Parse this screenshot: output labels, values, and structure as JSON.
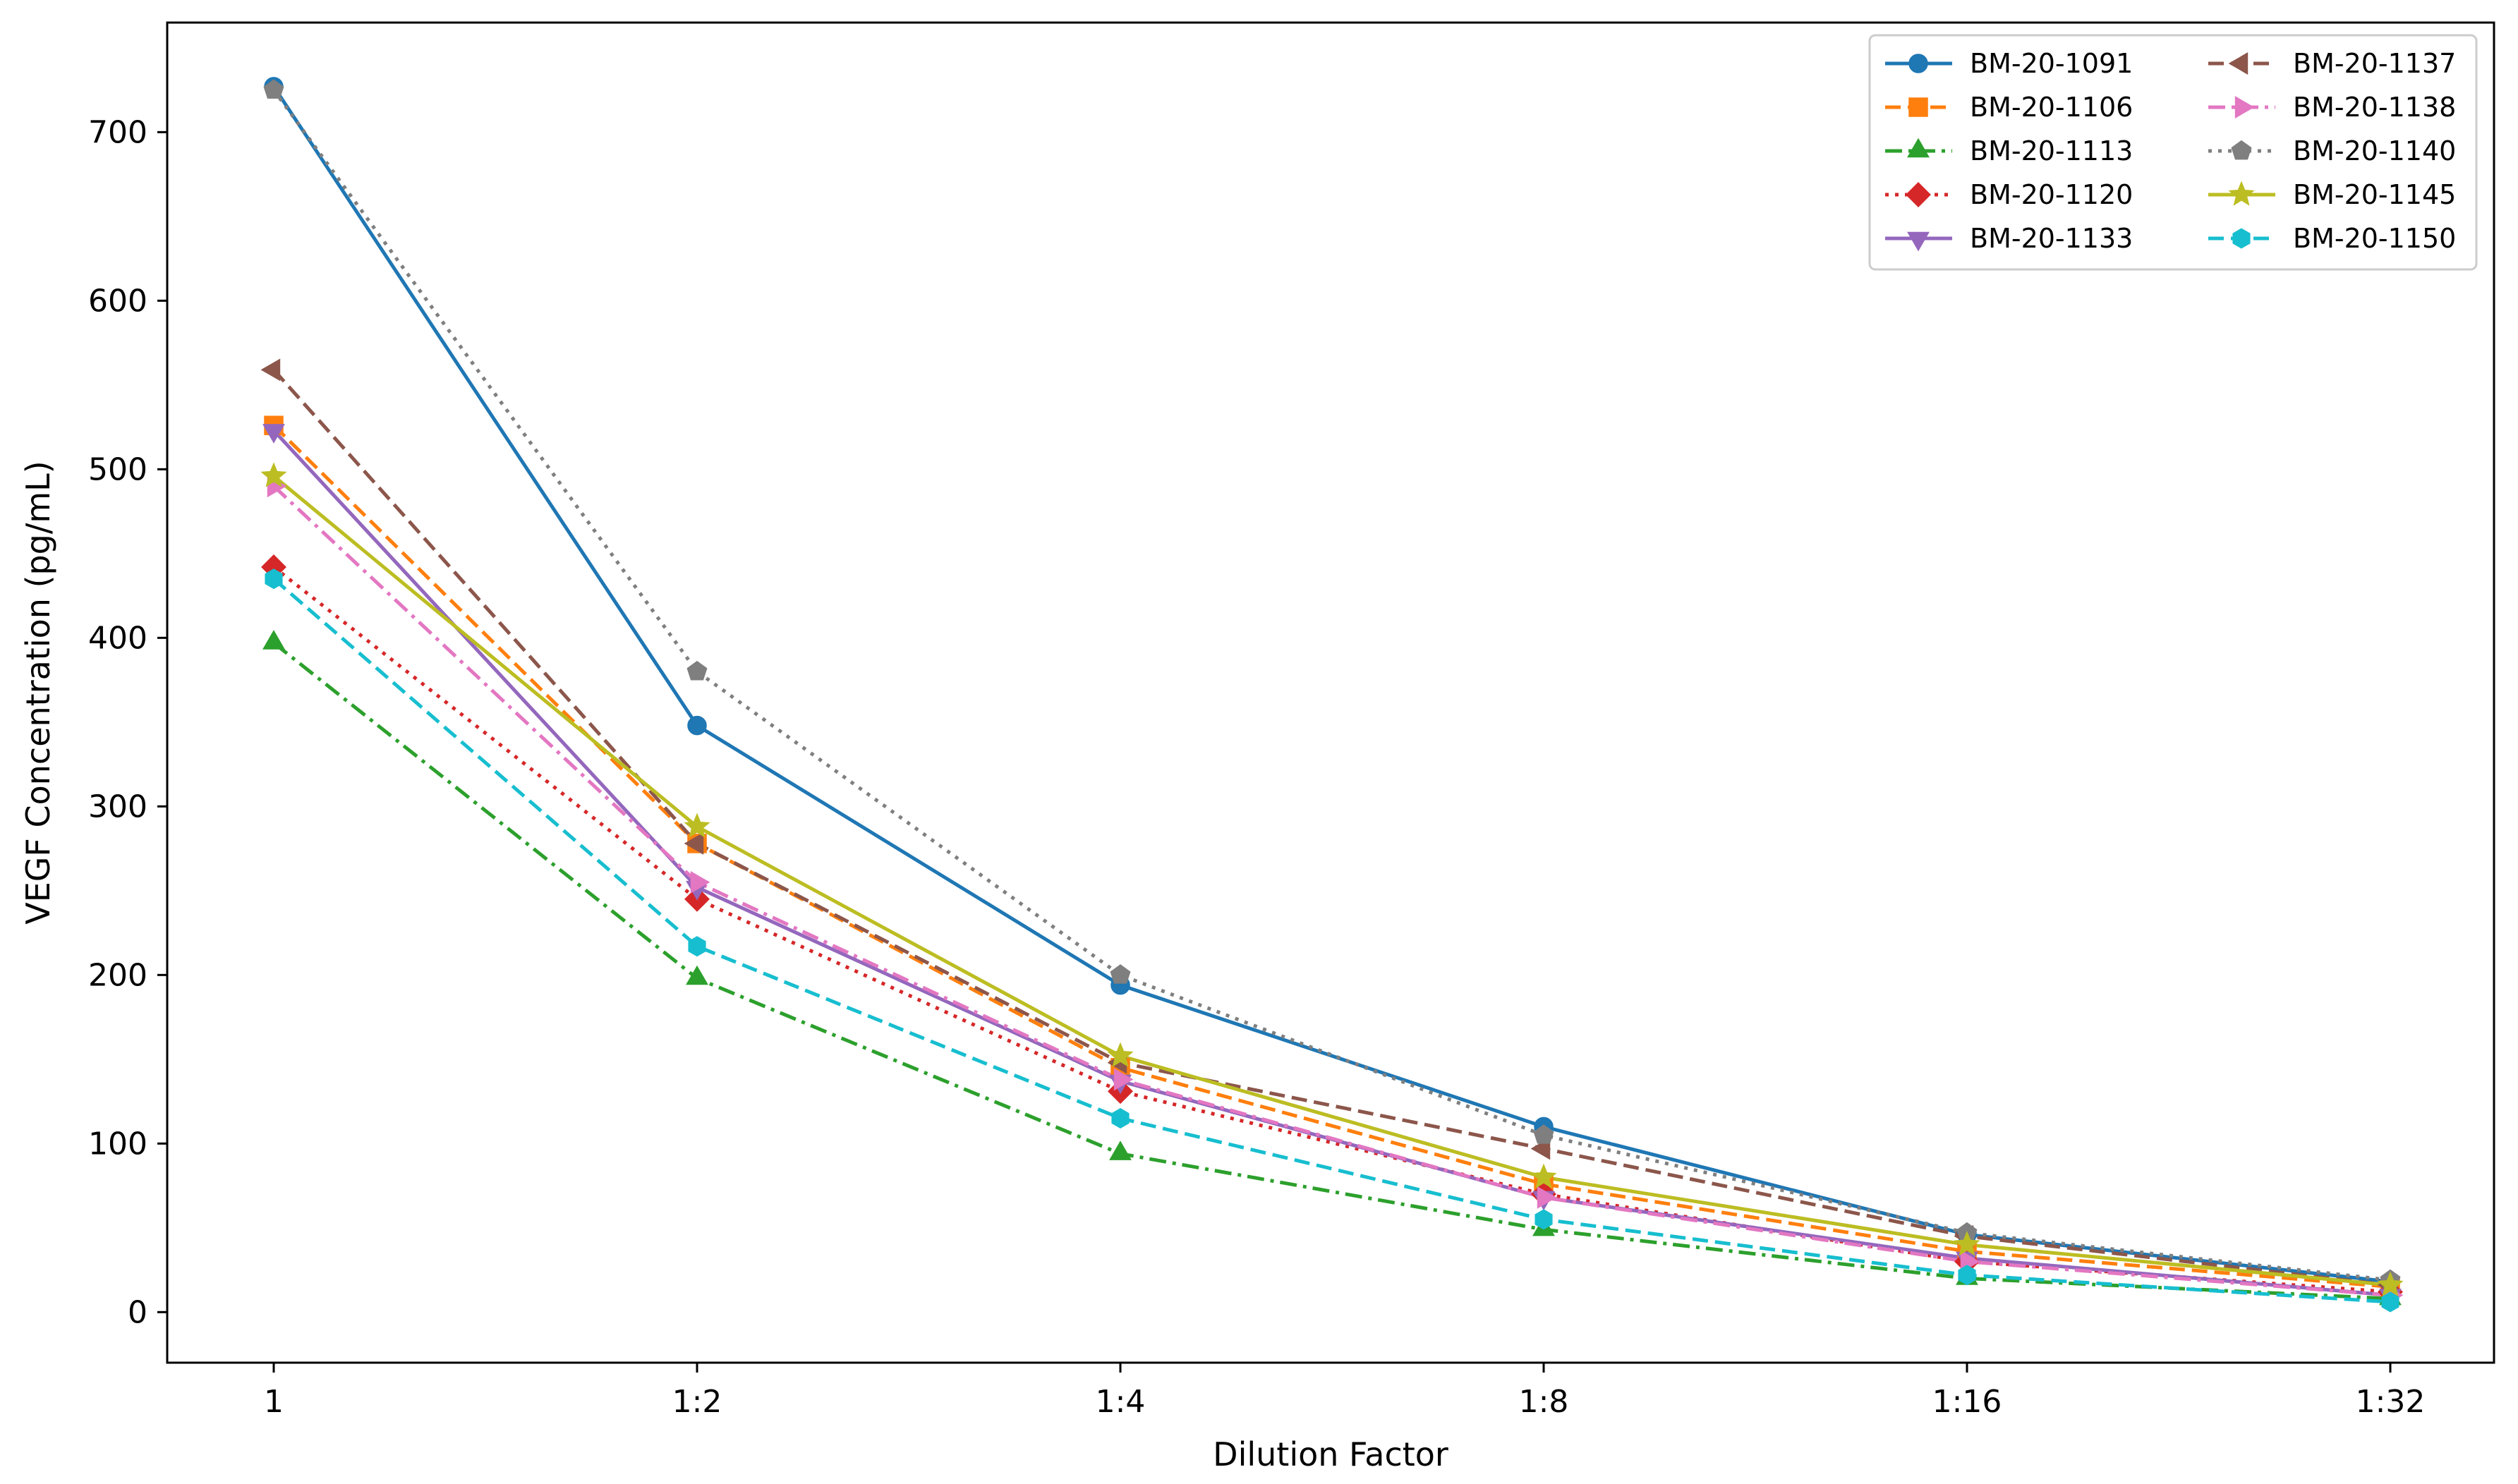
{
  "chart_data": {
    "type": "line",
    "title": "",
    "xlabel": "Dilution Factor",
    "ylabel": "VEGF Concentration (pg/mL)",
    "categories": [
      "1",
      "1:2",
      "1:4",
      "1:8",
      "1:16",
      "1:32"
    ],
    "ylim": [
      -30,
      765
    ],
    "yticks": [
      0,
      100,
      200,
      300,
      400,
      500,
      600,
      700
    ],
    "grid": false,
    "legend": {
      "position": "top-right",
      "columns": 2
    },
    "series": [
      {
        "name": "BM-20-1091",
        "color": "#1f77b4",
        "marker": "circle",
        "dash": "solid",
        "values": [
          727,
          348,
          194,
          110,
          46,
          18
        ]
      },
      {
        "name": "BM-20-1106",
        "color": "#ff7f0e",
        "marker": "square",
        "dash": "dashed",
        "values": [
          526,
          278,
          145,
          76,
          36,
          15
        ]
      },
      {
        "name": "BM-20-1113",
        "color": "#2ca02c",
        "marker": "triangle-up",
        "dash": "dashdot",
        "values": [
          397,
          198,
          94,
          49,
          20,
          8
        ]
      },
      {
        "name": "BM-20-1120",
        "color": "#d62728",
        "marker": "diamond",
        "dash": "dotted",
        "values": [
          442,
          245,
          131,
          70,
          30,
          12
        ]
      },
      {
        "name": "BM-20-1133",
        "color": "#9467bd",
        "marker": "triangle-down",
        "dash": "solid",
        "values": [
          523,
          252,
          137,
          68,
          32,
          10
        ]
      },
      {
        "name": "BM-20-1137",
        "color": "#8c564b",
        "marker": "triangle-left",
        "dash": "dashed",
        "values": [
          559,
          278,
          148,
          97,
          45,
          16
        ]
      },
      {
        "name": "BM-20-1138",
        "color": "#e377c2",
        "marker": "triangle-right",
        "dash": "dashdot",
        "values": [
          490,
          255,
          138,
          68,
          30,
          10
        ]
      },
      {
        "name": "BM-20-1140",
        "color": "#7f7f7f",
        "marker": "pentagon",
        "dash": "dotted",
        "values": [
          725,
          380,
          200,
          105,
          47,
          19
        ]
      },
      {
        "name": "BM-20-1145",
        "color": "#bcbd22",
        "marker": "star",
        "dash": "solid",
        "values": [
          496,
          288,
          152,
          80,
          40,
          16
        ]
      },
      {
        "name": "BM-20-1150",
        "color": "#17becf",
        "marker": "hexagon",
        "dash": "dashed",
        "values": [
          435,
          217,
          115,
          55,
          22,
          6
        ]
      }
    ]
  }
}
